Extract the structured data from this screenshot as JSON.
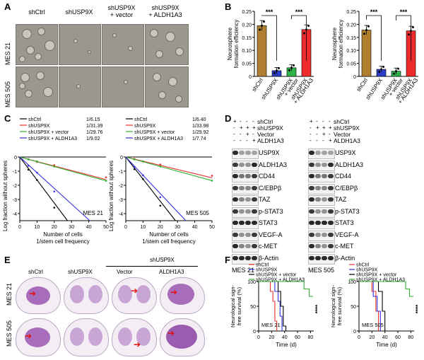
{
  "panels": {
    "A": "A",
    "B": "B",
    "C": "C",
    "D": "D",
    "E": "E",
    "F": "F"
  },
  "panelA": {
    "columns": [
      "shCtrl",
      "shUSP9X",
      "shUSP9X\n+ vector",
      "shUSP9X\n+ ALDH1A3"
    ],
    "rows": [
      "MES 21",
      "MES 505"
    ]
  },
  "panelB": {
    "ylabel": "Neurosphere\nformation efficiency",
    "sig": "***",
    "categories": [
      "shCtrl",
      "shUSP9X",
      "shUSP9X\n+ vector",
      "shUSP9X\n+ ALDH1A3"
    ],
    "colors": [
      "#b08030",
      "#2a3ec8",
      "#2fb24a",
      "#ee2b2b"
    ],
    "charts": [
      {
        "ylim": [
          0,
          0.25
        ],
        "yticks": [
          "0",
          "0.05",
          "0.10",
          "0.15",
          "0.20",
          "0.25"
        ],
        "values": [
          0.195,
          0.022,
          0.033,
          0.18
        ]
      },
      {
        "ylim": [
          0,
          0.25
        ],
        "yticks": [
          "0",
          "0.05",
          "0.10",
          "0.15",
          "0.20",
          "0.25"
        ],
        "values": [
          0.178,
          0.027,
          0.02,
          0.175
        ]
      }
    ]
  },
  "chart_data": [
    {
      "type": "bar",
      "title": "Neurosphere formation efficiency (left)",
      "categories": [
        "shCtrl",
        "shUSP9X",
        "shUSP9X + vector",
        "shUSP9X + ALDH1A3"
      ],
      "values": [
        0.195,
        0.022,
        0.033,
        0.18
      ],
      "ylim": [
        0,
        0.25
      ]
    },
    {
      "type": "bar",
      "title": "Neurosphere formation efficiency (right)",
      "categories": [
        "shCtrl",
        "shUSP9X",
        "shUSP9X + vector",
        "shUSP9X + ALDH1A3"
      ],
      "values": [
        0.178,
        0.027,
        0.02,
        0.175
      ],
      "ylim": [
        0,
        0.25
      ]
    },
    {
      "type": "line",
      "title": "MES 21",
      "xlabel": "Number of cells",
      "ylabel": "Log fraction without spheres",
      "series": [
        {
          "name": "shCtrl",
          "value": "1/6.15"
        },
        {
          "name": "shUSP9X",
          "value": "1/31.39"
        },
        {
          "name": "shUSP9X + vector",
          "value": "1/29.76"
        },
        {
          "name": "shUSP9X + ALDH1A3",
          "value": "1/9.02"
        }
      ],
      "xlim": [
        0,
        50
      ]
    },
    {
      "type": "line",
      "title": "MES 505",
      "xlabel": "Number of cells",
      "ylabel": "Log fraction without spheres",
      "series": [
        {
          "name": "shCtrl",
          "value": "1/6.40"
        },
        {
          "name": "shUSP9X",
          "value": "1/33.98"
        },
        {
          "name": "shUSP9X + vector",
          "value": "1/29.92"
        },
        {
          "name": "shUSP9X + ALDH1A3",
          "value": "1/7.74"
        }
      ],
      "xlim": [
        0,
        50
      ]
    },
    {
      "type": "line",
      "title": "MES 21 survival",
      "xlabel": "Time (d)",
      "ylabel": "Neurological sign-free survival (%)",
      "xlim": [
        0,
        80
      ],
      "ylim": [
        0,
        100
      ]
    },
    {
      "type": "line",
      "title": "MES 505 survival",
      "xlabel": "Time (d)",
      "ylabel": "Neurological sign-free survival (%)",
      "xlim": [
        0,
        80
      ],
      "ylim": [
        0,
        100
      ]
    }
  ],
  "panelC": {
    "ylabel": "Log fraction without spheres",
    "xlabel1": "Number of cells",
    "xlabel2": "1/stem cell frequency",
    "yticks": [
      "0",
      "-1",
      "-2",
      "-3",
      "-4"
    ],
    "xticks": [
      "0",
      "10",
      "20",
      "30",
      "40",
      "50"
    ],
    "series_colors": [
      "#000000",
      "#e83030",
      "#30b030",
      "#3030e0"
    ],
    "plots": [
      {
        "cell": "MES 21",
        "legend": [
          {
            "name": "shCtrl",
            "freq": "1/6.15"
          },
          {
            "name": "shUSP9X",
            "freq": "1/31.39"
          },
          {
            "name": "shUSP9X + vector",
            "freq": "1/29.76"
          },
          {
            "name": "shUSP9X + ALDH1A3",
            "freq": "1/9.02"
          }
        ]
      },
      {
        "cell": "MES 505",
        "legend": [
          {
            "name": "shCtrl",
            "freq": "1/6.40"
          },
          {
            "name": "shUSP9X",
            "freq": "1/33.98"
          },
          {
            "name": "shUSP9X + vector",
            "freq": "1/29.92"
          },
          {
            "name": "shUSP9X + ALDH1A3",
            "freq": "1/7.74"
          }
        ]
      }
    ]
  },
  "panelD": {
    "conditions": [
      "shCtrl",
      "shUSP9X",
      "Vector",
      "ALDH1A3"
    ],
    "signs": [
      [
        "+",
        "-",
        "-",
        "-"
      ],
      [
        "-",
        "+",
        "+",
        "+"
      ],
      [
        "-",
        "-",
        "+",
        "-"
      ],
      [
        "-",
        "-",
        "-",
        "+"
      ]
    ],
    "proteins": [
      "USP9X",
      "ALDH1A3",
      "CD44",
      "C/EBPβ",
      "TAZ",
      "p-STAT3",
      "STAT3",
      "VEGF-A",
      "c-MET",
      "β-Actin"
    ],
    "cells": [
      "MES 21",
      "MES 505"
    ]
  },
  "panelE": {
    "header": "shUSP9X",
    "columns": [
      "shCtrl",
      "shUSP9X",
      "Vector",
      "ALDH1A3"
    ],
    "rows": [
      "MES 21",
      "MES 505"
    ]
  },
  "panelF": {
    "ylabel": "Neurological sign-\nfree survival (%)",
    "xlabel": "Time (d)",
    "yticks": [
      "0",
      "50",
      "100"
    ],
    "xticks": [
      "0",
      "20",
      "40",
      "60",
      "80"
    ],
    "sig": "****",
    "legend": [
      "shCtrl",
      "shUSP9X",
      "shUSP9X + vector",
      "shUSP9X + ALDH1A3"
    ],
    "colors": [
      "#e83030",
      "#3030e0",
      "#000000",
      "#30b030"
    ],
    "plots": [
      {
        "cell": "MES 21"
      },
      {
        "cell": "MES 505"
      }
    ]
  }
}
